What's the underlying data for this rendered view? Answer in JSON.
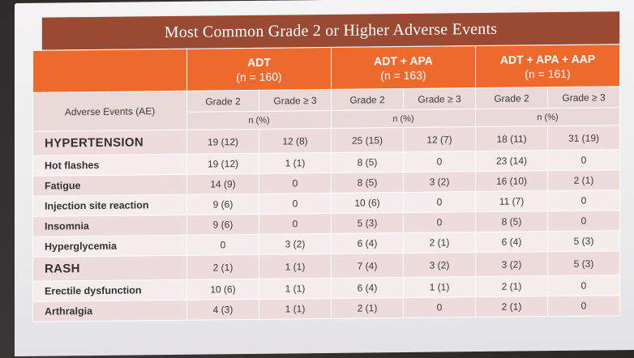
{
  "slide": {
    "title": "Most Common Grade 2 or Higher Adverse Events"
  },
  "table": {
    "arms": [
      {
        "name": "ADT",
        "n": "(n = 160)"
      },
      {
        "name": "ADT + APA",
        "n": "(n = 163)"
      },
      {
        "name": "ADT + APA + AAP",
        "n": "(n = 161)"
      }
    ],
    "ae_header": "Adverse Events (AE)",
    "grade2_label": "Grade 2",
    "grade3_label": "Grade ≥ 3",
    "npct_label": "n (%)",
    "rows": [
      {
        "ae": "HYPERTENSION",
        "cells": [
          "19 (12)",
          "12 (8)",
          "25 (15)",
          "12 (7)",
          "18 (11)",
          "31 (19)"
        ]
      },
      {
        "ae": "Hot flashes",
        "cells": [
          "19 (12)",
          "1 (1)",
          "8 (5)",
          "0",
          "23 (14)",
          "0"
        ]
      },
      {
        "ae": "Fatigue",
        "cells": [
          "14 (9)",
          "0",
          "8 (5)",
          "3 (2)",
          "16 (10)",
          "2 (1)"
        ]
      },
      {
        "ae": "Injection site reaction",
        "cells": [
          "9 (6)",
          "0",
          "10 (6)",
          "0",
          "11 (7)",
          "0"
        ]
      },
      {
        "ae": "Insomnia",
        "cells": [
          "9 (6)",
          "0",
          "5 (3)",
          "0",
          "8 (5)",
          "0"
        ]
      },
      {
        "ae": "Hyperglycemia",
        "cells": [
          "0",
          "3 (2)",
          "6 (4)",
          "2 (1)",
          "6 (4)",
          "5 (3)"
        ]
      },
      {
        "ae": "RASH",
        "cells": [
          "2 (1)",
          "1 (1)",
          "7 (4)",
          "3 (2)",
          "3 (2)",
          "5 (3)"
        ]
      },
      {
        "ae": "Erectile dysfunction",
        "cells": [
          "10 (6)",
          "1 (1)",
          "6 (4)",
          "1 (1)",
          "2 (1)",
          "0"
        ]
      },
      {
        "ae": "Arthralgia",
        "cells": [
          "4 (3)",
          "1 (1)",
          "2 (1)",
          "0",
          "2 (1)",
          "0"
        ]
      }
    ]
  },
  "colors": {
    "title_bar": "#9a4a33",
    "header_orange": "#ee6a2c",
    "row_shade_a": "#eedcdc",
    "row_shade_b": "#f5ecec"
  }
}
